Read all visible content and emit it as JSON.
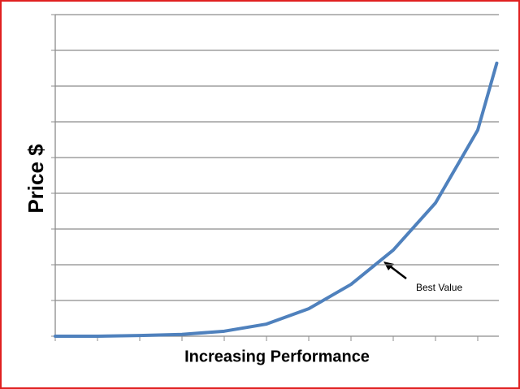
{
  "chart_data": {
    "type": "line",
    "y_label": "Price  $",
    "x_label": "Increasing Performance",
    "annotation": "Best Value",
    "x": [
      0,
      1,
      2,
      3,
      4,
      5,
      6,
      7,
      8,
      9,
      10,
      10.45
    ],
    "series": [
      {
        "name": "Price",
        "color": "#4f81bd",
        "values": [
          0,
          0,
          0.02,
          0.05,
          0.14,
          0.34,
          0.77,
          1.45,
          2.41,
          3.73,
          5.77,
          7.64
        ]
      }
    ],
    "xlim": [
      0,
      10.5
    ],
    "xticks": [
      0,
      1,
      2,
      3,
      4,
      5,
      6,
      7,
      8,
      9,
      10
    ],
    "ylim": [
      0,
      9
    ],
    "yticks": [
      0,
      1,
      2,
      3,
      4,
      5,
      6,
      7,
      8,
      9
    ],
    "grid": true
  }
}
